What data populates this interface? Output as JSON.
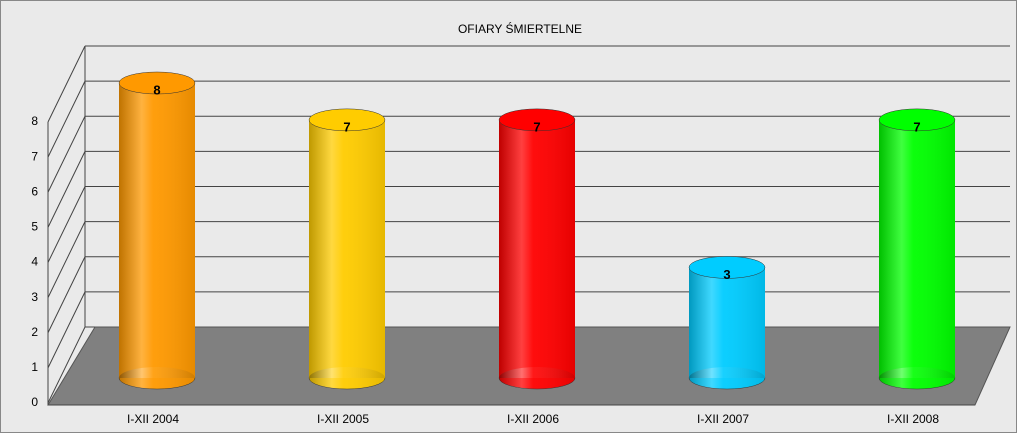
{
  "chart_data": {
    "type": "bar",
    "title": "OFIARY ŚMIERTELNE",
    "categories": [
      "I-XII 2004",
      "I-XII 2005",
      "I-XII 2006",
      "I-XII 2007",
      "I-XII 2008"
    ],
    "values": [
      8,
      7,
      7,
      3,
      7
    ],
    "colors": [
      "#ff9900",
      "#ffcc00",
      "#ff0000",
      "#00ccff",
      "#00ff00"
    ],
    "ylim": [
      0,
      8
    ],
    "yticks": [
      0,
      1,
      2,
      3,
      4,
      5,
      6,
      7,
      8
    ],
    "grid": true
  }
}
